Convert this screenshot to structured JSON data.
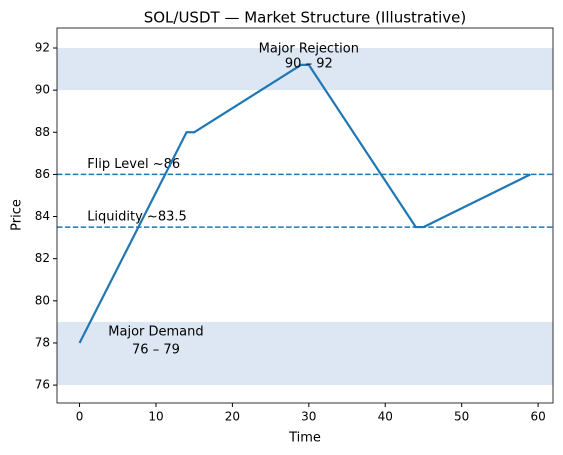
{
  "chart_data": {
    "type": "line",
    "title": "SOL/USDT — Market Structure (Illustrative)",
    "x_label": "Time",
    "y_label": "Price",
    "x": [
      0,
      14,
      15,
      29,
      30,
      44,
      45,
      59
    ],
    "series": [
      {
        "name": "SOL/USDT",
        "color": "#1f77b4",
        "values": [
          78,
          88,
          88,
          91.2,
          91.2,
          83.5,
          83.5,
          86
        ]
      }
    ],
    "xlim": [
      -2.95,
      61.95
    ],
    "xticks": [
      0,
      10,
      20,
      30,
      40,
      50,
      60
    ],
    "ylim": [
      75.15,
      92.95
    ],
    "yticks": [
      76,
      78,
      80,
      82,
      84,
      86,
      88,
      90,
      92
    ],
    "bands": [
      {
        "from": 90,
        "to": 92,
        "label": "Major Rejection",
        "range_label": "90 – 92",
        "color": "#dce7f3"
      },
      {
        "from": 76,
        "to": 79,
        "label": "Major Demand",
        "range_label": "76 – 79",
        "color": "#dce7f3"
      }
    ],
    "hlines": [
      {
        "value": 86,
        "label": "Flip Level ~86",
        "color": "#1f77b4"
      },
      {
        "value": 83.5,
        "label": "Liquidity ~83.5",
        "color": "#1f77b4"
      }
    ]
  }
}
